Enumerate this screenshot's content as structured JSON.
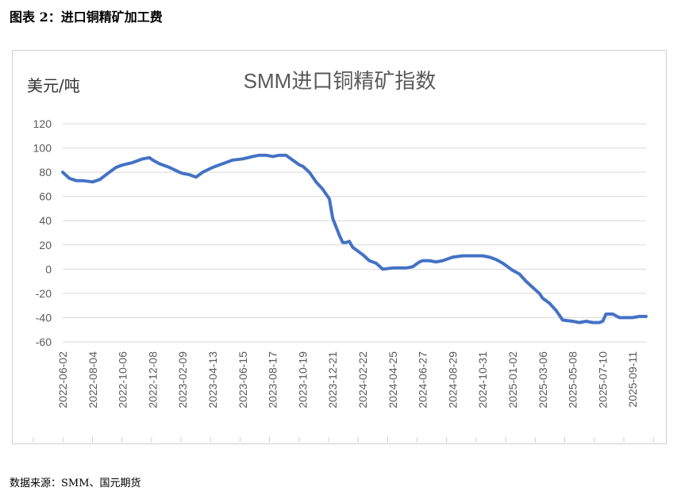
{
  "figure": {
    "caption": "图表 2：进口铜精矿加工费",
    "source": "数据来源：SMM、国元期货"
  },
  "chart_data": {
    "type": "line",
    "title": "SMM进口铜精矿指数",
    "ylabel": "美元/吨",
    "xlabel": "",
    "ylim": [
      -60,
      120
    ],
    "yticks": [
      120,
      100,
      80,
      60,
      40,
      20,
      0,
      -20,
      -40,
      -60
    ],
    "grid": true,
    "line_color": "#4472c4",
    "x_tick_labels": [
      "2022-06-02",
      "2022-08-04",
      "2022-10-06",
      "2022-12-08",
      "2023-02-09",
      "2023-04-13",
      "2023-06-15",
      "2023-08-17",
      "2023-10-19",
      "2023-12-21",
      "2024-02-22",
      "2024-04-25",
      "2024-06-27",
      "2024-08-29",
      "2024-10-31",
      "2025-01-02",
      "2025-03-06",
      "2025-05-08",
      "2025-07-10",
      "2025-09-11"
    ],
    "series": [
      {
        "x": [
          "2022-06-02",
          "2022-06-16",
          "2022-07-01",
          "2022-07-15",
          "2022-08-04",
          "2022-08-19",
          "2022-09-08",
          "2022-09-22",
          "2022-10-06",
          "2022-10-27",
          "2022-11-17",
          "2022-12-01",
          "2022-12-08",
          "2022-12-22",
          "2023-01-12",
          "2023-02-02",
          "2023-02-09",
          "2023-02-23",
          "2023-03-09",
          "2023-03-23",
          "2023-04-13",
          "2023-04-27",
          "2023-05-11",
          "2023-05-25",
          "2023-06-15",
          "2023-07-06",
          "2023-07-20",
          "2023-08-03",
          "2023-08-17",
          "2023-08-31",
          "2023-09-14",
          "2023-10-12",
          "2023-10-19",
          "2023-11-02",
          "2023-11-16",
          "2023-11-30",
          "2023-12-14",
          "2023-12-21",
          "2024-01-04",
          "2024-01-11",
          "2024-01-18",
          "2024-01-25",
          "2024-02-01",
          "2024-02-22",
          "2024-03-07",
          "2024-03-21",
          "2024-04-04",
          "2024-04-25",
          "2024-05-09",
          "2024-05-23",
          "2024-06-06",
          "2024-06-20",
          "2024-06-27",
          "2024-07-11",
          "2024-07-25",
          "2024-08-08",
          "2024-08-29",
          "2024-09-19",
          "2024-10-10",
          "2024-10-31",
          "2024-11-14",
          "2024-11-28",
          "2024-12-12",
          "2025-01-02",
          "2025-01-16",
          "2025-01-30",
          "2025-02-13",
          "2025-02-27",
          "2025-03-06",
          "2025-03-20",
          "2025-04-03",
          "2025-04-17",
          "2025-05-08",
          "2025-05-22",
          "2025-06-05",
          "2025-06-19",
          "2025-07-03",
          "2025-07-10",
          "2025-07-17",
          "2025-07-31",
          "2025-08-14",
          "2025-08-28",
          "2025-09-11",
          "2025-09-25",
          "2025-10-09"
        ],
        "values": [
          80,
          75,
          73,
          73,
          72,
          74,
          80,
          84,
          86,
          88,
          91,
          92,
          90,
          87,
          84,
          80,
          79,
          78,
          76,
          80,
          84,
          86,
          88,
          90,
          91,
          93,
          94,
          94,
          93,
          94,
          94,
          86,
          85,
          80,
          72,
          66,
          58,
          42,
          28,
          22,
          22,
          23,
          18,
          12,
          7,
          5,
          0,
          1,
          1,
          1,
          2,
          6,
          7,
          7,
          6,
          7,
          10,
          11,
          11,
          11,
          10,
          8,
          5,
          -1,
          -4,
          -10,
          -15,
          -20,
          -24,
          -28,
          -34,
          -42,
          -43,
          -44,
          -43,
          -44,
          -44,
          -43,
          -37,
          -37,
          -40,
          -40,
          -40,
          -39,
          -39
        ]
      }
    ]
  }
}
